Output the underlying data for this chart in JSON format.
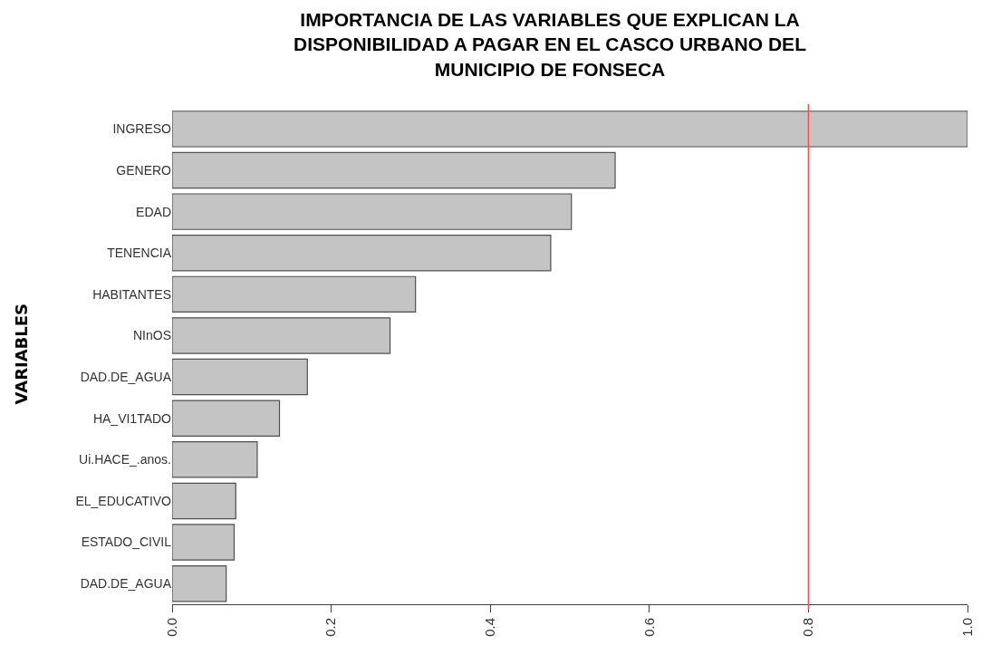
{
  "chart_data": {
    "type": "bar",
    "orientation": "horizontal",
    "title": "IMPORTANCIA DE LAS VARIABLES QUE EXPLICAN LA\nDISPONIBILIDAD A PAGAR EN EL CASCO URBANO DEL\nMUNICIPIO DE FONSECA",
    "ylabel": "VARIABLES",
    "categories": [
      "INGRESO",
      "GENERO",
      "EDAD",
      "TENENCIA",
      "HABITANTES",
      "NInOS",
      "DAD.DE_AGUA",
      "HA_VI1TADO",
      "Ui.HACE_.anos.",
      "EL_EDUCATIVO",
      "ESTADO_CIVIL",
      "DAD.DE_AGUA"
    ],
    "values": [
      1.0,
      0.557,
      0.502,
      0.476,
      0.306,
      0.274,
      0.17,
      0.135,
      0.107,
      0.08,
      0.078,
      0.068
    ],
    "color": "#c4c4c4",
    "xlim": [
      0,
      1
    ],
    "xticks": [
      {
        "value": 0,
        "label": "0.0"
      },
      0.2,
      0.4,
      0.6,
      0.8,
      {
        "value": 1,
        "label": "1.0"
      }
    ],
    "ref_lines": [
      {
        "axis": "x",
        "value": 0.8,
        "color": "#ff5050"
      }
    ]
  }
}
